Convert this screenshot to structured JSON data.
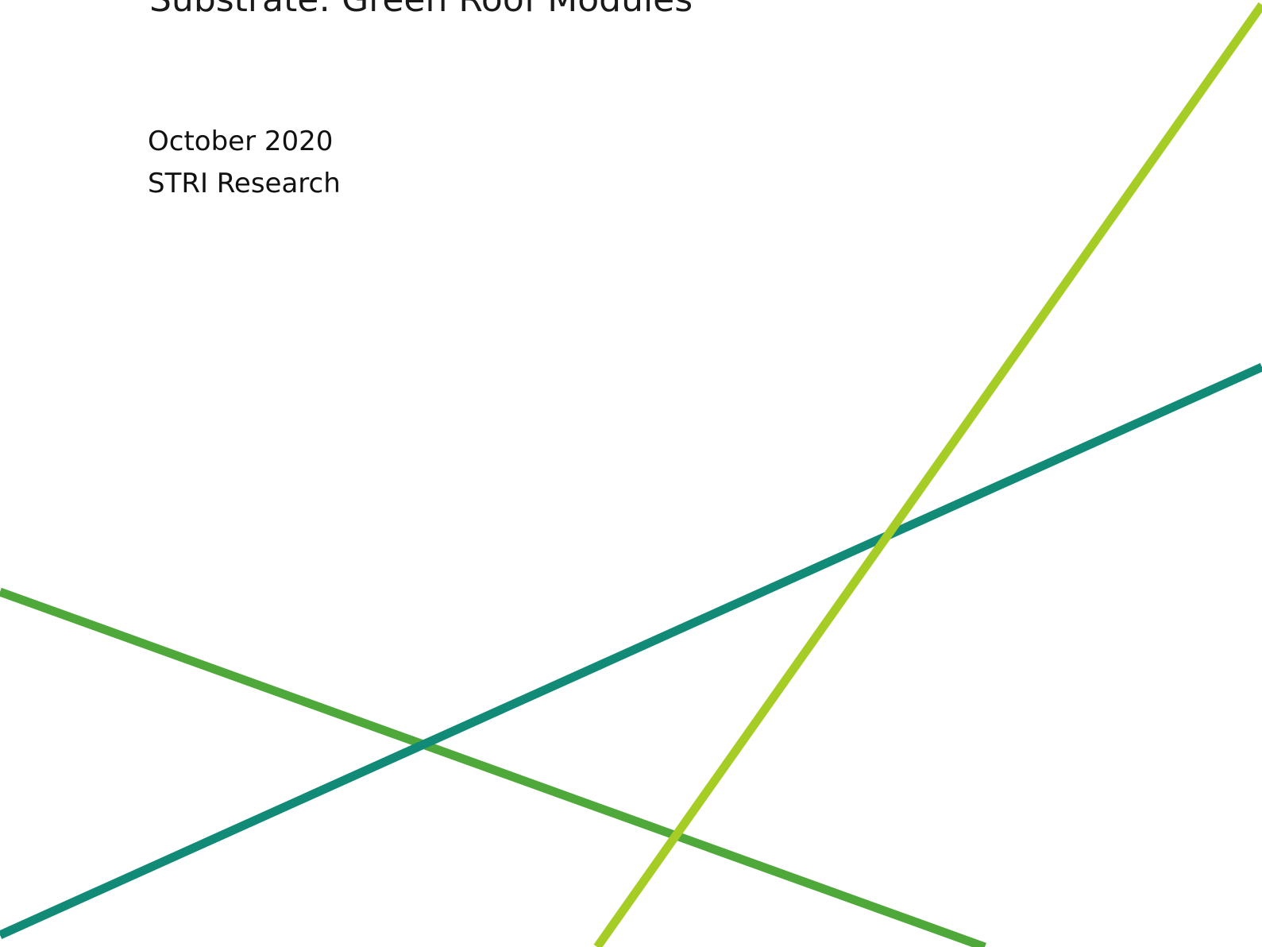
{
  "document": {
    "title": "Substrate: Green Roof Modules",
    "date": "October 2020",
    "author": "STRI Research"
  },
  "colors": {
    "line_dark_green": "#4ea83a",
    "line_teal": "#128a78",
    "line_lime": "#a6cd26",
    "text": "#111111",
    "background": "#ffffff"
  }
}
